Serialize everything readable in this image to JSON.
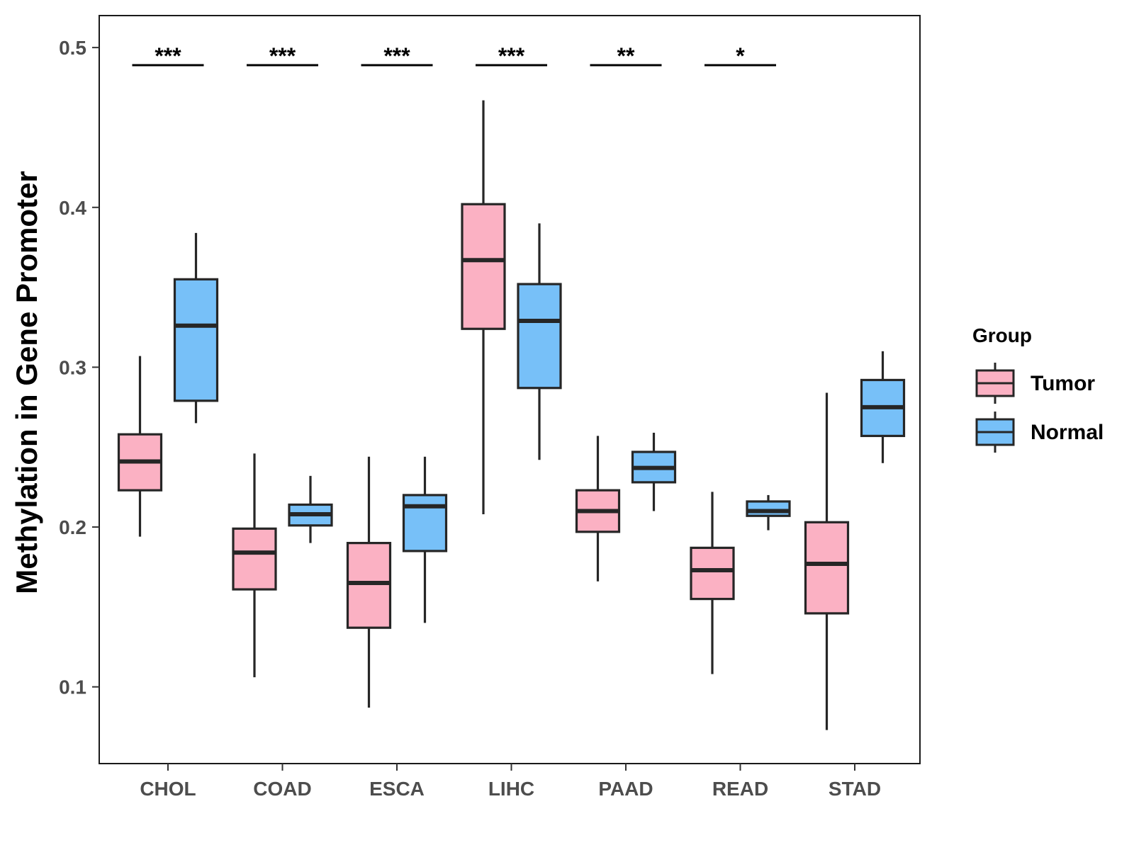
{
  "chart_data": {
    "type": "boxplot",
    "title": "",
    "xlabel": "",
    "ylabel": "Methylation in Gene Promoter",
    "ylim": [
      0.052,
      0.52
    ],
    "yticks": [
      0.1,
      0.2,
      0.3,
      0.4,
      0.5
    ],
    "ytick_labels": [
      "0.1",
      "0.2",
      "0.3",
      "0.4",
      "0.5"
    ],
    "grid": false,
    "categories": [
      "CHOL",
      "COAD",
      "ESCA",
      "LIHC",
      "PAAD",
      "READ",
      "STAD"
    ],
    "legend": {
      "title": "Group",
      "position": "right",
      "entries": [
        {
          "name": "Tumor",
          "color": "#FBB1C3"
        },
        {
          "name": "Normal",
          "color": "#77C0F8"
        }
      ]
    },
    "series": [
      {
        "name": "Tumor",
        "color": "#FBB1C3",
        "boxes": [
          {
            "category": "CHOL",
            "whisker_low": 0.194,
            "q1": 0.223,
            "median": 0.241,
            "q3": 0.258,
            "whisker_high": 0.307
          },
          {
            "category": "COAD",
            "whisker_low": 0.106,
            "q1": 0.161,
            "median": 0.184,
            "q3": 0.199,
            "whisker_high": 0.246
          },
          {
            "category": "ESCA",
            "whisker_low": 0.087,
            "q1": 0.137,
            "median": 0.165,
            "q3": 0.19,
            "whisker_high": 0.244
          },
          {
            "category": "LIHC",
            "whisker_low": 0.208,
            "q1": 0.324,
            "median": 0.367,
            "q3": 0.402,
            "whisker_high": 0.467
          },
          {
            "category": "PAAD",
            "whisker_low": 0.166,
            "q1": 0.197,
            "median": 0.21,
            "q3": 0.223,
            "whisker_high": 0.257
          },
          {
            "category": "READ",
            "whisker_low": 0.108,
            "q1": 0.155,
            "median": 0.173,
            "q3": 0.187,
            "whisker_high": 0.222
          },
          {
            "category": "STAD",
            "whisker_low": 0.073,
            "q1": 0.146,
            "median": 0.177,
            "q3": 0.203,
            "whisker_high": 0.284
          }
        ]
      },
      {
        "name": "Normal",
        "color": "#77C0F8",
        "boxes": [
          {
            "category": "CHOL",
            "whisker_low": 0.265,
            "q1": 0.279,
            "median": 0.326,
            "q3": 0.355,
            "whisker_high": 0.384
          },
          {
            "category": "COAD",
            "whisker_low": 0.19,
            "q1": 0.201,
            "median": 0.208,
            "q3": 0.214,
            "whisker_high": 0.232
          },
          {
            "category": "ESCA",
            "whisker_low": 0.14,
            "q1": 0.185,
            "median": 0.213,
            "q3": 0.22,
            "whisker_high": 0.244
          },
          {
            "category": "LIHC",
            "whisker_low": 0.242,
            "q1": 0.287,
            "median": 0.329,
            "q3": 0.352,
            "whisker_high": 0.39
          },
          {
            "category": "PAAD",
            "whisker_low": 0.21,
            "q1": 0.228,
            "median": 0.237,
            "q3": 0.247,
            "whisker_high": 0.259
          },
          {
            "category": "READ",
            "whisker_low": 0.198,
            "q1": 0.207,
            "median": 0.21,
            "q3": 0.216,
            "whisker_high": 0.22
          },
          {
            "category": "STAD",
            "whisker_low": 0.24,
            "q1": 0.257,
            "median": 0.275,
            "q3": 0.292,
            "whisker_high": 0.31
          }
        ]
      }
    ],
    "annotations": [
      {
        "category": "CHOL",
        "label": "***"
      },
      {
        "category": "COAD",
        "label": "***"
      },
      {
        "category": "ESCA",
        "label": "***"
      },
      {
        "category": "LIHC",
        "label": "***"
      },
      {
        "category": "PAAD",
        "label": "**"
      },
      {
        "category": "READ",
        "label": "*"
      }
    ],
    "annotation_bar_y": 0.489
  }
}
